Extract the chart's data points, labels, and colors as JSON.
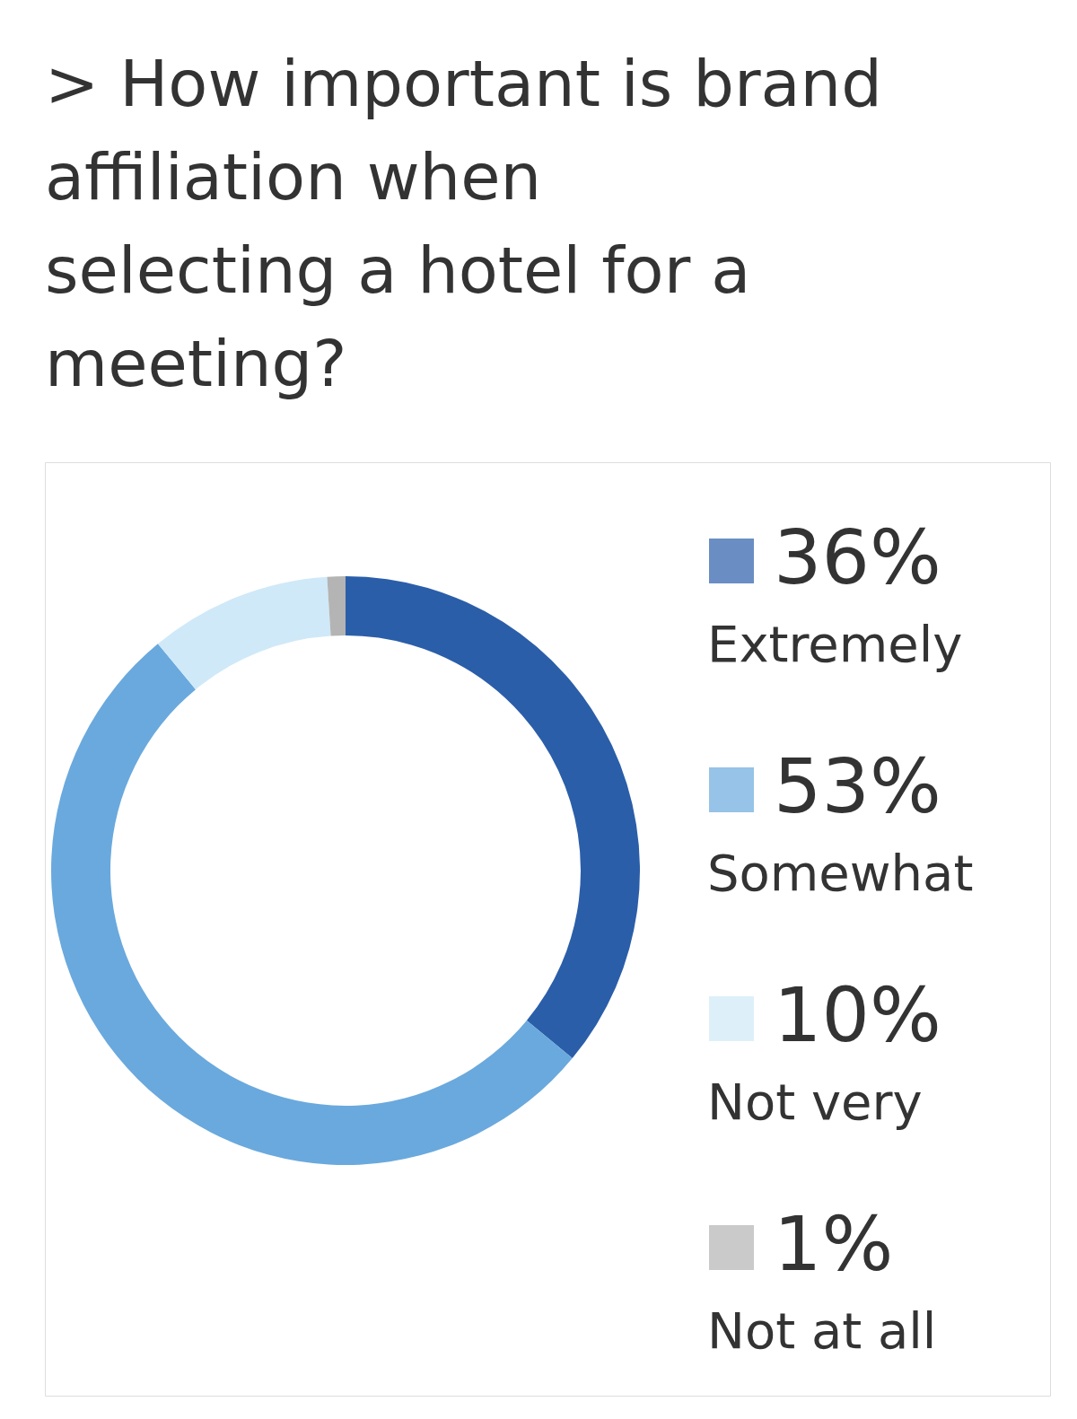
{
  "chart_data": {
    "type": "donut",
    "title": "> How important is brand affiliation when selecting a hotel for a meeting?",
    "categories": [
      "Extremely",
      "Somewhat",
      "Not very",
      "Not at all"
    ],
    "values": [
      36,
      53,
      10,
      1
    ],
    "value_labels": [
      "36%",
      "53%",
      "10%",
      "1%"
    ],
    "colors": [
      "#2b5ea9",
      "#6aa9dd",
      "#cfe9f8",
      "#b4b4b4"
    ],
    "legend": "right"
  }
}
